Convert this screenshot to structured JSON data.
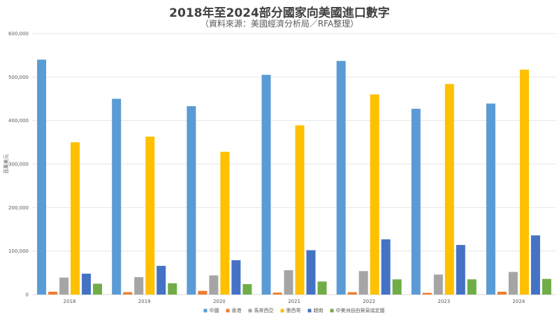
{
  "chart_data": {
    "type": "bar",
    "title": "2018年至2024部分國家向美國進口數字",
    "subtitle": "（資料來源：美國經濟分析局／RFA整理）",
    "ylabel": "百萬美元",
    "xlabel": "",
    "ylim": [
      0,
      600000
    ],
    "yticks": [
      0,
      100000,
      200000,
      300000,
      400000,
      500000,
      600000
    ],
    "ytick_labels": [
      "0",
      "100,000",
      "200,000",
      "300,000",
      "400,000",
      "500,000",
      "600,000"
    ],
    "grid": true,
    "legend_position": "bottom",
    "categories": [
      "2018",
      "2019",
      "2020",
      "2021",
      "2022",
      "2023",
      "2024"
    ],
    "series": [
      {
        "name": "中國",
        "color": "#5b9bd5",
        "values": [
          540000,
          450000,
          433000,
          505000,
          537000,
          427000,
          439000
        ]
      },
      {
        "name": "香港",
        "color": "#ed7d31",
        "values": [
          6500,
          5500,
          8500,
          4500,
          5500,
          4000,
          6500
        ]
      },
      {
        "name": "馬來西亞",
        "color": "#a5a5a5",
        "values": [
          39000,
          40000,
          44000,
          56000,
          54000,
          46000,
          52000
        ]
      },
      {
        "name": "墨西哥",
        "color": "#ffc000",
        "values": [
          350000,
          363000,
          328000,
          389000,
          460000,
          484000,
          517000
        ]
      },
      {
        "name": "越南",
        "color": "#4472c4",
        "values": [
          48000,
          66000,
          79000,
          102000,
          127000,
          114000,
          136000
        ]
      },
      {
        "name": "中美洲自由貿易協定國",
        "color": "#70ad47",
        "values": [
          25000,
          26000,
          24000,
          30000,
          35000,
          35000,
          36000
        ]
      }
    ]
  }
}
